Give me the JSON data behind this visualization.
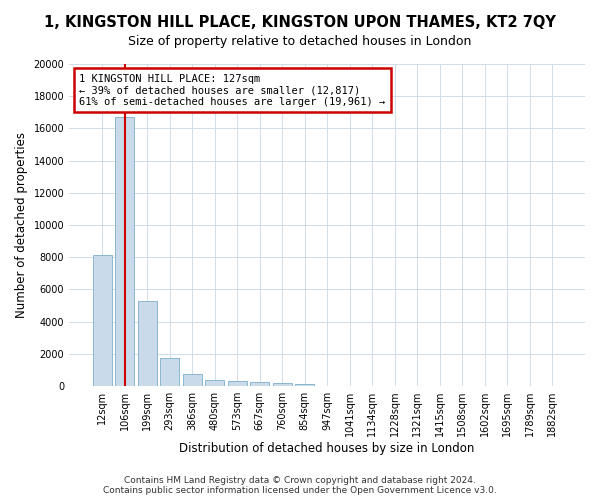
{
  "title": "1, KINGSTON HILL PLACE, KINGSTON UPON THAMES, KT2 7QY",
  "subtitle": "Size of property relative to detached houses in London",
  "xlabel": "Distribution of detached houses by size in London",
  "ylabel": "Number of detached properties",
  "categories": [
    "12sqm",
    "106sqm",
    "199sqm",
    "293sqm",
    "386sqm",
    "480sqm",
    "573sqm",
    "667sqm",
    "760sqm",
    "854sqm",
    "947sqm",
    "1041sqm",
    "1134sqm",
    "1228sqm",
    "1321sqm",
    "1415sqm",
    "1508sqm",
    "1602sqm",
    "1695sqm",
    "1789sqm",
    "1882sqm"
  ],
  "values": [
    8150,
    16700,
    5300,
    1750,
    720,
    370,
    290,
    240,
    195,
    130,
    0,
    0,
    0,
    0,
    0,
    0,
    0,
    0,
    0,
    0,
    0
  ],
  "bar_color": "#c9daea",
  "bar_edge_color": "#7bafc9",
  "vline_x": 1.0,
  "vline_color": "#cc0000",
  "annotation_text": "1 KINGSTON HILL PLACE: 127sqm\n← 39% of detached houses are smaller (12,817)\n61% of semi-detached houses are larger (19,961) →",
  "annotation_box_color": "#ffffff",
  "annotation_box_edge_color": "#cc0000",
  "ylim": [
    0,
    20000
  ],
  "yticks": [
    0,
    2000,
    4000,
    6000,
    8000,
    10000,
    12000,
    14000,
    16000,
    18000,
    20000
  ],
  "footer_line1": "Contains HM Land Registry data © Crown copyright and database right 2024.",
  "footer_line2": "Contains public sector information licensed under the Open Government Licence v3.0.",
  "bg_color": "#ffffff",
  "plot_bg_color": "#ffffff",
  "grid_color": "#d0dce8",
  "title_fontsize": 10.5,
  "subtitle_fontsize": 9,
  "axis_label_fontsize": 8.5,
  "tick_fontsize": 7,
  "footer_fontsize": 6.5
}
